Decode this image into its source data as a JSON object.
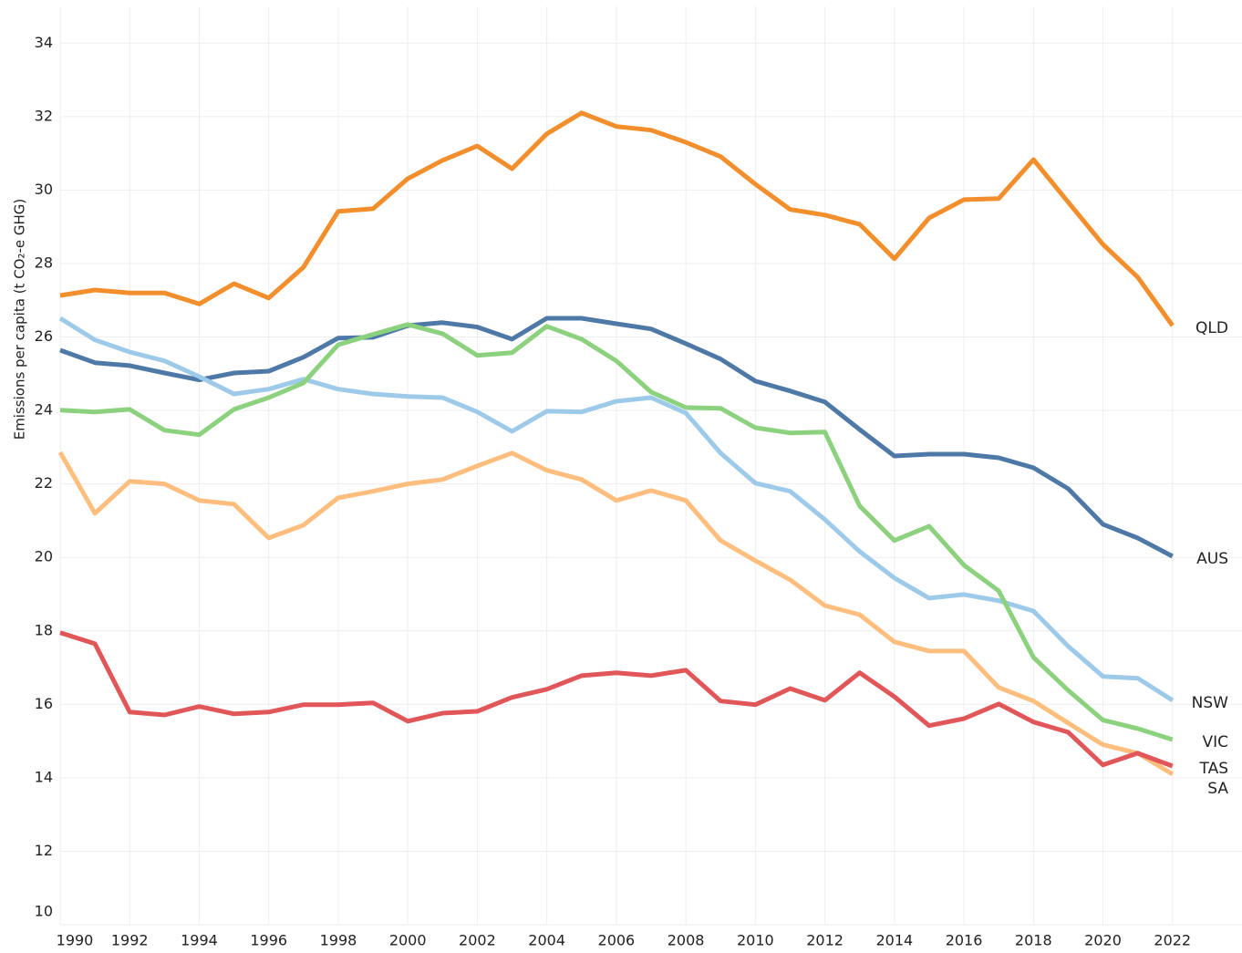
{
  "chart_data": {
    "type": "line",
    "y_label": "Emissions per capita (t CO₂-e GHG)",
    "x": [
      1990,
      1991,
      1992,
      1993,
      1994,
      1995,
      1996,
      1997,
      1998,
      1999,
      2000,
      2001,
      2002,
      2003,
      2004,
      2005,
      2006,
      2007,
      2008,
      2009,
      2010,
      2011,
      2012,
      2013,
      2014,
      2015,
      2016,
      2017,
      2018,
      2019,
      2020,
      2021,
      2022
    ],
    "xlim": [
      1990,
      2024
    ],
    "xticks": [
      1990,
      1992,
      1994,
      1996,
      1998,
      2000,
      2002,
      2004,
      2006,
      2008,
      2010,
      2012,
      2014,
      2016,
      2018,
      2020,
      2022
    ],
    "ylim": [
      10,
      35
    ],
    "yticks": [
      10,
      12,
      14,
      16,
      18,
      20,
      22,
      24,
      26,
      28,
      30,
      32,
      34
    ],
    "grid": true,
    "series": [
      {
        "name": "QLD",
        "color": "#f28e2b",
        "values": [
          27.13,
          27.28,
          27.2,
          27.2,
          26.9,
          27.45,
          27.06,
          27.9,
          29.42,
          29.49,
          30.31,
          30.81,
          31.2,
          30.58,
          31.53,
          32.1,
          31.73,
          31.63,
          31.3,
          30.91,
          30.16,
          29.47,
          29.32,
          29.07,
          28.13,
          29.24,
          29.74,
          29.77,
          30.83,
          29.67,
          28.52,
          27.63,
          26.31
        ]
      },
      {
        "name": "AUS",
        "color": "#4e79a7",
        "values": [
          25.64,
          25.3,
          25.22,
          25.02,
          24.83,
          25.02,
          25.07,
          25.45,
          25.97,
          25.99,
          26.31,
          26.39,
          26.27,
          25.94,
          26.51,
          26.51,
          26.36,
          26.22,
          25.82,
          25.4,
          24.8,
          24.53,
          24.23,
          23.48,
          22.76,
          22.81,
          22.81,
          22.71,
          22.44,
          21.87,
          20.9,
          20.53,
          20.03
        ]
      },
      {
        "name": "NSW",
        "color": "#9ecae9",
        "values": [
          26.51,
          25.92,
          25.59,
          25.35,
          24.92,
          24.45,
          24.58,
          24.85,
          24.58,
          24.45,
          24.38,
          24.35,
          23.96,
          23.43,
          23.98,
          23.96,
          24.25,
          24.35,
          23.93,
          22.84,
          22.02,
          21.8,
          21.03,
          20.16,
          19.44,
          18.89,
          18.99,
          18.82,
          18.54,
          17.58,
          16.76,
          16.71,
          16.11
        ]
      },
      {
        "name": "VIC",
        "color": "#8cd17d",
        "values": [
          24.01,
          23.96,
          24.03,
          23.46,
          23.34,
          24.03,
          24.35,
          24.75,
          25.79,
          26.07,
          26.34,
          26.09,
          25.5,
          25.57,
          26.29,
          25.94,
          25.35,
          24.5,
          24.08,
          24.06,
          23.53,
          23.39,
          23.41,
          21.4,
          20.46,
          20.85,
          19.79,
          19.09,
          17.28,
          16.38,
          15.57,
          15.34,
          15.04
        ]
      },
      {
        "name": "SA",
        "color": "#ffbe7d",
        "values": [
          22.86,
          21.2,
          22.07,
          22.0,
          21.55,
          21.45,
          20.53,
          20.88,
          21.62,
          21.8,
          22.0,
          22.12,
          22.49,
          22.84,
          22.37,
          22.12,
          21.55,
          21.82,
          21.55,
          20.46,
          19.91,
          19.39,
          18.69,
          18.44,
          17.7,
          17.45,
          17.45,
          16.46,
          16.09,
          15.49,
          14.9,
          14.67,
          14.1
        ]
      },
      {
        "name": "TAS",
        "color": "#e15759",
        "values": [
          17.95,
          17.65,
          15.79,
          15.71,
          15.94,
          15.74,
          15.79,
          15.99,
          15.99,
          16.04,
          15.54,
          15.76,
          15.81,
          16.19,
          16.41,
          16.78,
          16.86,
          16.78,
          16.93,
          16.09,
          15.99,
          16.43,
          16.11,
          16.86,
          16.21,
          15.42,
          15.61,
          16.01,
          15.52,
          15.24,
          14.35,
          14.67,
          14.32
        ]
      }
    ]
  }
}
